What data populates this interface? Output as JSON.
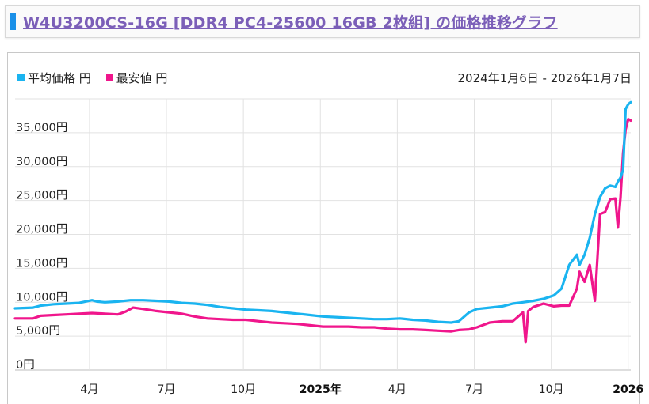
{
  "header": {
    "title": "W4U3200CS-16G [DDR4 PC4-25600 16GB 2枚組] の価格推移グラフ"
  },
  "legend": {
    "average": {
      "label": "平均価格 円",
      "color": "#1ab4f0"
    },
    "lowest": {
      "label": "最安値 円",
      "color": "#f0168c"
    }
  },
  "date_range": "2024年1月6日 - 2026年1月7日",
  "chart_data": {
    "type": "line",
    "title": "W4U3200CS-16G [DDR4 PC4-25600 16GB 2枚組] の価格推移グラフ",
    "xlabel": "",
    "ylabel": "",
    "ylim": [
      0,
      40000
    ],
    "y_ticks": [
      {
        "value": 0,
        "label": "0円"
      },
      {
        "value": 5000,
        "label": "5,000円"
      },
      {
        "value": 10000,
        "label": "10,000円"
      },
      {
        "value": 15000,
        "label": "15,000円"
      },
      {
        "value": 20000,
        "label": "20,000円"
      },
      {
        "value": 25000,
        "label": "25,000円"
      },
      {
        "value": 30000,
        "label": "30,000円"
      },
      {
        "value": 35000,
        "label": "35,000円"
      }
    ],
    "x_ticks": [
      {
        "t": 2.9,
        "label": "4月",
        "bold": false
      },
      {
        "t": 5.9,
        "label": "7月",
        "bold": false
      },
      {
        "t": 8.9,
        "label": "10月",
        "bold": false
      },
      {
        "t": 11.9,
        "label": "2025年",
        "bold": true
      },
      {
        "t": 14.9,
        "label": "4月",
        "bold": false
      },
      {
        "t": 17.9,
        "label": "7月",
        "bold": false
      },
      {
        "t": 20.9,
        "label": "10月",
        "bold": false
      },
      {
        "t": 23.9,
        "label": "2026",
        "bold": true
      }
    ],
    "x_range": [
      0,
      24.0
    ],
    "series": [
      {
        "name": "平均価格",
        "color": "#1ab4f0",
        "x": [
          0,
          0.7,
          1.0,
          1.5,
          2.0,
          2.5,
          3.0,
          3.2,
          3.5,
          4.0,
          4.5,
          5.0,
          5.5,
          6.0,
          6.5,
          7.0,
          7.5,
          8.0,
          8.5,
          9.0,
          9.5,
          10.0,
          10.5,
          11.0,
          11.5,
          12.0,
          12.5,
          13.0,
          13.5,
          14.0,
          14.5,
          15.0,
          15.5,
          16.0,
          16.5,
          17.0,
          17.3,
          17.7,
          18.0,
          18.5,
          19.0,
          19.4,
          19.8,
          20.2,
          20.6,
          21.0,
          21.3,
          21.6,
          21.9,
          22.0,
          22.2,
          22.4,
          22.6,
          22.8,
          23.0,
          23.2,
          23.4,
          23.5,
          23.6,
          23.7,
          23.8,
          23.9,
          24.0
        ],
        "values": [
          9100,
          9200,
          9500,
          9700,
          9800,
          9900,
          10300,
          10100,
          10000,
          10100,
          10300,
          10300,
          10200,
          10100,
          9900,
          9800,
          9600,
          9300,
          9100,
          8900,
          8800,
          8700,
          8500,
          8300,
          8100,
          7900,
          7800,
          7700,
          7600,
          7500,
          7500,
          7600,
          7400,
          7300,
          7100,
          7000,
          7200,
          8500,
          9000,
          9200,
          9400,
          9800,
          10000,
          10200,
          10500,
          11000,
          12000,
          15500,
          17000,
          15500,
          17000,
          19500,
          23000,
          25500,
          26800,
          27200,
          27000,
          27800,
          28400,
          29500,
          38500,
          39200,
          39500
        ]
      },
      {
        "name": "最安値",
        "color": "#f0168c",
        "x": [
          0,
          0.7,
          1.0,
          1.5,
          2.0,
          2.5,
          3.0,
          3.5,
          4.0,
          4.3,
          4.6,
          5.0,
          5.5,
          6.0,
          6.5,
          7.0,
          7.5,
          8.0,
          8.5,
          9.0,
          9.5,
          10.0,
          10.5,
          11.0,
          11.5,
          12.0,
          12.5,
          13.0,
          13.5,
          14.0,
          14.5,
          15.0,
          15.5,
          16.0,
          16.5,
          17.0,
          17.3,
          17.7,
          18.0,
          18.5,
          19.0,
          19.4,
          19.8,
          19.9,
          20.0,
          20.2,
          20.6,
          21.0,
          21.3,
          21.6,
          21.9,
          22.0,
          22.2,
          22.4,
          22.6,
          22.8,
          23.0,
          23.2,
          23.4,
          23.5,
          23.6,
          23.7,
          23.8,
          23.9,
          24.0
        ],
        "values": [
          7600,
          7600,
          8000,
          8100,
          8200,
          8300,
          8400,
          8300,
          8200,
          8600,
          9200,
          9000,
          8700,
          8500,
          8300,
          7900,
          7600,
          7500,
          7400,
          7400,
          7200,
          7000,
          6900,
          6800,
          6600,
          6400,
          6400,
          6400,
          6300,
          6300,
          6100,
          6000,
          6000,
          5900,
          5800,
          5700,
          5900,
          6000,
          6300,
          7000,
          7200,
          7200,
          8500,
          4100,
          8700,
          9300,
          9800,
          9400,
          9500,
          9500,
          12000,
          14500,
          13000,
          15500,
          10200,
          23000,
          23300,
          25200,
          25300,
          21000,
          25500,
          32000,
          35500,
          37000,
          36800
        ]
      }
    ]
  }
}
